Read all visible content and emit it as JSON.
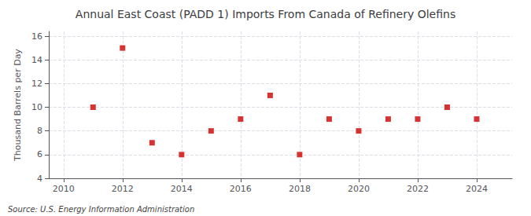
{
  "chart_data": {
    "type": "scatter",
    "title": "Annual East Coast (PADD 1) Imports From Canada of Refinery Olefins",
    "y_label": "Thousand Barrels per Day",
    "annotations": [
      "Source: U.S. Energy Information Administration"
    ],
    "x": [
      2011,
      2012,
      2013,
      2014,
      2015,
      2016,
      2017,
      2018,
      2019,
      2020,
      2021,
      2022,
      2023,
      2024
    ],
    "values": [
      10,
      15,
      7,
      6,
      8,
      9,
      11,
      6,
      9,
      8,
      9,
      9,
      10,
      9
    ],
    "color": "#cc0000",
    "marker": "square",
    "xlim": [
      2009.5,
      2025.2
    ],
    "xticks": [
      2010,
      2012,
      2014,
      2016,
      2018,
      2020,
      2022,
      2024
    ],
    "ylim": [
      4,
      16.4
    ],
    "yticks": [
      4,
      6,
      8,
      10,
      12,
      14,
      16
    ],
    "grid": true
  }
}
